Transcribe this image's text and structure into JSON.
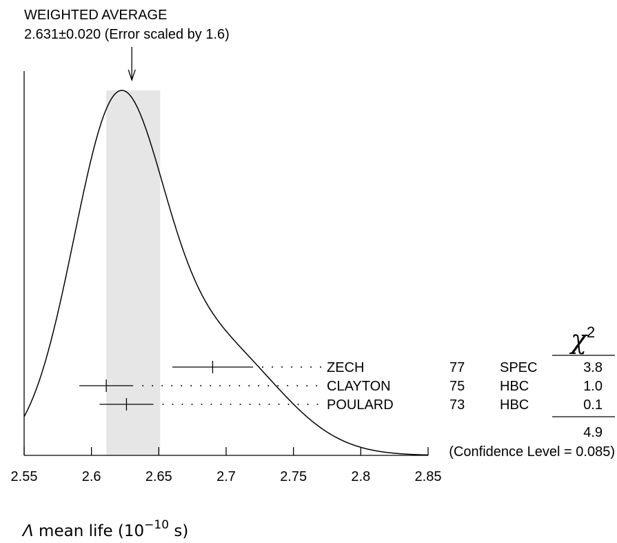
{
  "chart_data": {
    "type": "ideogram",
    "annotation_title": "WEIGHTED AVERAGE",
    "annotation_value": "2.631±0.020 (Error scaled by 1.6)",
    "weighted_average": {
      "value": 2.631,
      "error": 0.02,
      "scale_factor": 1.6
    },
    "xlim": [
      2.55,
      2.85
    ],
    "xticks": [
      "2.55",
      "2.6",
      "2.65",
      "2.7",
      "2.75",
      "2.8",
      "2.85"
    ],
    "xlabel": {
      "symbol": "Λ",
      "text": " mean life (10",
      "exponent": "−10",
      "unit": " s)"
    },
    "measurements": [
      {
        "author": "ZECH",
        "year": "77",
        "technique": "SPEC",
        "value": 2.69,
        "error": 0.03,
        "chi2": "3.8"
      },
      {
        "author": "CLAYTON",
        "year": "75",
        "technique": "HBC",
        "value": 2.611,
        "error": 0.02,
        "chi2": "1.0"
      },
      {
        "author": "POULARD",
        "year": "73",
        "technique": "HBC",
        "value": 2.626,
        "error": 0.02,
        "chi2": "0.1"
      }
    ],
    "chi2_header": "χ",
    "chi2_header_exponent": "2",
    "chi2_total": "4.9",
    "confidence_level": "(Confidence Level = 0.085)",
    "band": {
      "low": 2.611,
      "high": 2.651
    }
  }
}
